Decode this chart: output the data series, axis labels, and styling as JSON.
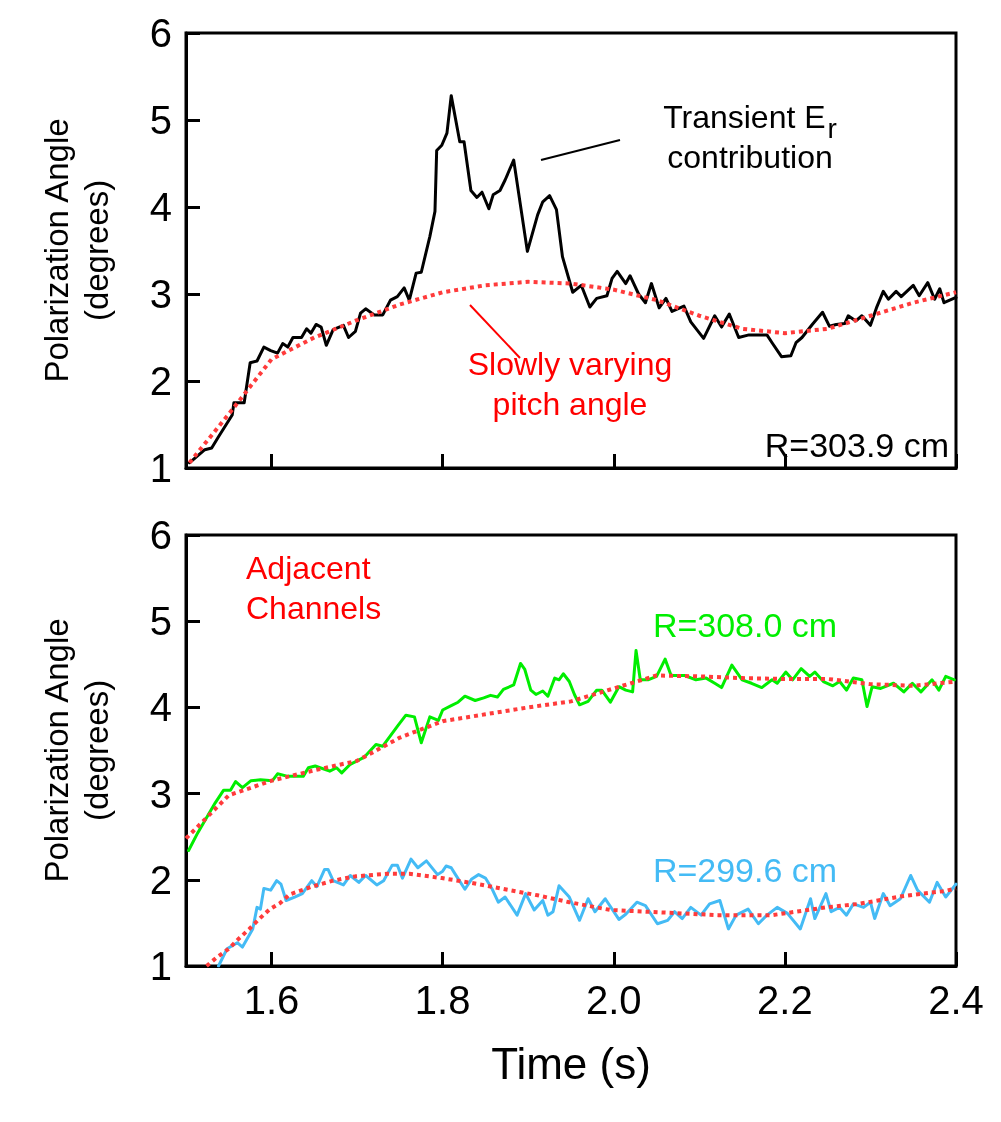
{
  "chart_data": [
    {
      "type": "line",
      "ylabel": "Polarization Angle\n(degrees)",
      "xlim": [
        1.5,
        2.4
      ],
      "ylim": [
        1,
        6
      ],
      "xticks": [
        1.6,
        1.8,
        2.0,
        2.2,
        2.4
      ],
      "yticks": [
        1,
        2,
        3,
        4,
        5,
        6
      ],
      "tick_labels": "y",
      "grid": false,
      "legend": false,
      "marker": "none",
      "annotations": [
        "Transient E$_{r}$ contribution",
        "Slowly varying pitch angle"
      ],
      "series": [
        {
          "name": "R=303.9 cm",
          "color": "#000000",
          "x": [
            1.504,
            1.522,
            1.53,
            1.538,
            1.554,
            1.556,
            1.568,
            1.575,
            1.583,
            1.591,
            1.599,
            1.607,
            1.613,
            1.619,
            1.625,
            1.635,
            1.641,
            1.646,
            1.652,
            1.658,
            1.664,
            1.672,
            1.684,
            1.69,
            1.698,
            1.704,
            1.71,
            1.72,
            1.73,
            1.739,
            1.747,
            1.755,
            1.761,
            1.769,
            1.775,
            1.785,
            1.791,
            1.793,
            1.799,
            1.805,
            1.81,
            1.82,
            1.825,
            1.833,
            1.84,
            1.846,
            1.854,
            1.859,
            1.867,
            1.873,
            1.883,
            1.899,
            1.911,
            1.917,
            1.925,
            1.933,
            1.94,
            1.952,
            1.962,
            1.972,
            1.98,
            1.992,
            1.998,
            2.004,
            2.014,
            2.019,
            2.029,
            2.037,
            2.044,
            2.053,
            2.061,
            2.068,
            2.082,
            2.09,
            2.105,
            2.118,
            2.126,
            2.135,
            2.146,
            2.158,
            2.167,
            2.179,
            2.185,
            2.196,
            2.207,
            2.213,
            2.22,
            2.232,
            2.244,
            2.252,
            2.26,
            2.27,
            2.274,
            2.283,
            2.29,
            2.3,
            2.307,
            2.315,
            2.321,
            2.33,
            2.336,
            2.35,
            2.357,
            2.367,
            2.375,
            2.381,
            2.386,
            2.4
          ],
          "values": [
            1.06,
            1.21,
            1.23,
            1.36,
            1.61,
            1.75,
            1.75,
            2.21,
            2.23,
            2.39,
            2.35,
            2.32,
            2.43,
            2.39,
            2.5,
            2.5,
            2.6,
            2.55,
            2.65,
            2.62,
            2.41,
            2.59,
            2.64,
            2.5,
            2.57,
            2.78,
            2.83,
            2.76,
            2.76,
            2.93,
            2.97,
            3.07,
            2.93,
            3.24,
            3.25,
            3.66,
            3.95,
            4.65,
            4.71,
            4.85,
            5.28,
            4.75,
            4.75,
            4.19,
            4.11,
            4.17,
            3.98,
            4.14,
            4.19,
            4.31,
            4.54,
            3.49,
            3.91,
            4.06,
            4.13,
            3.97,
            3.43,
            3.02,
            3.1,
            2.85,
            2.95,
            2.98,
            3.18,
            3.26,
            3.12,
            3.21,
            3.0,
            2.9,
            3.12,
            2.84,
            2.95,
            2.8,
            2.86,
            2.68,
            2.49,
            2.75,
            2.62,
            2.77,
            2.5,
            2.53,
            2.53,
            2.53,
            2.44,
            2.28,
            2.29,
            2.44,
            2.5,
            2.65,
            2.79,
            2.63,
            2.65,
            2.66,
            2.75,
            2.69,
            2.75,
            2.64,
            2.84,
            3.03,
            2.94,
            3.03,
            2.97,
            3.1,
            2.98,
            3.13,
            2.94,
            3.06,
            2.9,
            2.96
          ]
        },
        {
          "color": "#ff3b3b",
          "line_style": "dotted",
          "x": [
            1.504,
            1.55,
            1.6,
            1.65,
            1.7,
            1.75,
            1.8,
            1.85,
            1.9,
            1.95,
            2.0,
            2.05,
            2.1,
            2.15,
            2.2,
            2.25,
            2.3,
            2.35,
            2.4
          ],
          "values": [
            1.06,
            1.62,
            2.25,
            2.5,
            2.7,
            2.88,
            3.02,
            3.1,
            3.14,
            3.12,
            3.05,
            2.93,
            2.75,
            2.6,
            2.55,
            2.6,
            2.75,
            2.9,
            3.02
          ]
        }
      ]
    },
    {
      "type": "line",
      "xlabel": "Time (s)",
      "ylabel": "Polarization Angle\n(degrees)",
      "xlim": [
        1.5,
        2.4
      ],
      "ylim": [
        1,
        6
      ],
      "xticks": [
        1.6,
        1.8,
        {
          "value": 2.0,
          "label": "2.0"
        },
        2.2,
        2.4
      ],
      "yticks": [
        1,
        2,
        3,
        4,
        5,
        6
      ],
      "grid": false,
      "legend": false,
      "marker": "none",
      "annotations": [
        "Adjacent Channels"
      ],
      "series": [
        {
          "name": "R=308.0 cm",
          "color": "#00ee00",
          "x": [
            1.503,
            1.514,
            1.524,
            1.534,
            1.544,
            1.552,
            1.558,
            1.566,
            1.576,
            1.587,
            1.601,
            1.607,
            1.619,
            1.637,
            1.643,
            1.651,
            1.668,
            1.676,
            1.682,
            1.692,
            1.708,
            1.722,
            1.73,
            1.747,
            1.757,
            1.767,
            1.775,
            1.785,
            1.795,
            1.8,
            1.81,
            1.818,
            1.826,
            1.838,
            1.848,
            1.856,
            1.864,
            1.871,
            1.883,
            1.891,
            1.896,
            1.903,
            1.909,
            1.917,
            1.923,
            1.931,
            1.936,
            1.941,
            1.948,
            1.954,
            1.96,
            1.97,
            1.98,
            1.986,
            1.996,
            2.006,
            2.014,
            2.022,
            2.026,
            2.031,
            2.04,
            2.05,
            2.06,
            2.067,
            2.083,
            2.096,
            2.108,
            2.118,
            2.126,
            2.138,
            2.15,
            2.161,
            2.173,
            2.185,
            2.191,
            2.201,
            2.209,
            2.219,
            2.229,
            2.235,
            2.245,
            2.256,
            2.264,
            2.272,
            2.28,
            2.29,
            2.296,
            2.302,
            2.312,
            2.327,
            2.339,
            2.349,
            2.359,
            2.372,
            2.38,
            2.388,
            2.398
          ],
          "values": [
            2.34,
            2.55,
            2.72,
            2.89,
            3.04,
            3.04,
            3.14,
            3.07,
            3.15,
            3.16,
            3.15,
            3.23,
            3.2,
            3.2,
            3.3,
            3.32,
            3.26,
            3.3,
            3.24,
            3.34,
            3.42,
            3.57,
            3.55,
            3.78,
            3.91,
            3.89,
            3.59,
            3.89,
            3.85,
            3.97,
            4.02,
            4.06,
            4.13,
            4.08,
            4.11,
            4.14,
            4.12,
            4.21,
            4.26,
            4.51,
            4.44,
            4.2,
            4.15,
            4.19,
            4.13,
            4.34,
            4.32,
            4.39,
            4.3,
            4.15,
            4.03,
            4.07,
            4.2,
            4.2,
            4.06,
            4.24,
            4.2,
            4.18,
            4.66,
            4.32,
            4.32,
            4.36,
            4.56,
            4.37,
            4.37,
            4.32,
            4.34,
            4.28,
            4.23,
            4.49,
            4.32,
            4.28,
            4.23,
            4.32,
            4.28,
            4.41,
            4.32,
            4.45,
            4.36,
            4.41,
            4.3,
            4.25,
            4.3,
            4.2,
            4.34,
            4.32,
            4.01,
            4.24,
            4.22,
            4.28,
            4.18,
            4.28,
            4.18,
            4.32,
            4.2,
            4.36,
            4.32
          ]
        },
        {
          "color": "#ff3b3b",
          "line_style": "dotted",
          "x": [
            1.5,
            1.55,
            1.6,
            1.65,
            1.7,
            1.75,
            1.8,
            1.85,
            1.9,
            1.95,
            2.0,
            2.05,
            2.1,
            2.15,
            2.2,
            2.25,
            2.3,
            2.35,
            2.4
          ],
          "values": [
            2.48,
            2.98,
            3.15,
            3.27,
            3.38,
            3.65,
            3.84,
            3.92,
            4.0,
            4.07,
            4.22,
            4.37,
            4.36,
            4.34,
            4.33,
            4.33,
            4.27,
            4.25,
            4.3
          ]
        },
        {
          "name": "R=299.6 cm",
          "color": "#44bbf5",
          "x": [
            1.538,
            1.548,
            1.56,
            1.566,
            1.578,
            1.583,
            1.587,
            1.591,
            1.599,
            1.606,
            1.611,
            1.617,
            1.627,
            1.636,
            1.647,
            1.653,
            1.662,
            1.666,
            1.672,
            1.684,
            1.692,
            1.702,
            1.71,
            1.723,
            1.731,
            1.741,
            1.747,
            1.753,
            1.763,
            1.771,
            1.781,
            1.794,
            1.8,
            1.804,
            1.81,
            1.815,
            1.826,
            1.834,
            1.842,
            1.85,
            1.858,
            1.865,
            1.873,
            1.887,
            1.897,
            1.907,
            1.917,
            1.923,
            1.929,
            1.936,
            1.948,
            1.96,
            1.97,
            1.978,
            1.99,
            2.006,
            2.014,
            2.027,
            2.037,
            2.051,
            2.063,
            2.071,
            2.08,
            2.09,
            2.102,
            2.112,
            2.124,
            2.134,
            2.143,
            2.157,
            2.169,
            2.179,
            2.191,
            2.203,
            2.218,
            2.23,
            2.235,
            2.248,
            2.254,
            2.264,
            2.272,
            2.28,
            2.292,
            2.3,
            2.305,
            2.315,
            2.323,
            2.335,
            2.347,
            2.355,
            2.369,
            2.378,
            2.388,
            2.4
          ],
          "values": [
            1.0,
            1.2,
            1.27,
            1.22,
            1.43,
            1.68,
            1.66,
            1.9,
            1.88,
            1.99,
            1.95,
            1.76,
            1.8,
            1.84,
            1.99,
            1.92,
            2.12,
            2.12,
            1.99,
            1.94,
            2.05,
            1.97,
            2.05,
            1.94,
            1.99,
            2.17,
            2.17,
            2.02,
            2.24,
            2.14,
            2.22,
            2.06,
            2.1,
            2.16,
            2.14,
            2.06,
            1.89,
            2.01,
            2.06,
            2.02,
            1.89,
            1.74,
            1.8,
            1.59,
            1.84,
            1.65,
            1.76,
            1.59,
            1.63,
            1.93,
            1.8,
            1.53,
            1.78,
            1.63,
            1.78,
            1.54,
            1.6,
            1.74,
            1.7,
            1.49,
            1.53,
            1.63,
            1.55,
            1.68,
            1.59,
            1.72,
            1.76,
            1.43,
            1.59,
            1.66,
            1.49,
            1.59,
            1.68,
            1.61,
            1.43,
            1.78,
            1.55,
            1.84,
            1.63,
            1.68,
            1.59,
            1.72,
            1.68,
            1.74,
            1.55,
            1.84,
            1.7,
            1.78,
            2.05,
            1.88,
            1.74,
            1.97,
            1.8,
            1.95
          ]
        },
        {
          "color": "#ff3b3b",
          "line_style": "dotted",
          "x": [
            1.524,
            1.536,
            1.55,
            1.562,
            1.574,
            1.586,
            1.598,
            1.61,
            1.621,
            1.647,
            1.672,
            1.698,
            1.735,
            1.761,
            1.799,
            1.836,
            1.873,
            1.911,
            1.948,
            1.996,
            2.059,
            2.122,
            2.185,
            2.248,
            2.286,
            2.337,
            2.387,
            2.4
          ],
          "values": [
            1.0,
            1.1,
            1.2,
            1.32,
            1.43,
            1.55,
            1.66,
            1.73,
            1.83,
            1.92,
            1.99,
            2.04,
            2.07,
            2.07,
            2.02,
            1.96,
            1.89,
            1.82,
            1.74,
            1.65,
            1.62,
            1.59,
            1.59,
            1.68,
            1.72,
            1.81,
            1.87,
            1.9
          ]
        }
      ]
    }
  ]
}
